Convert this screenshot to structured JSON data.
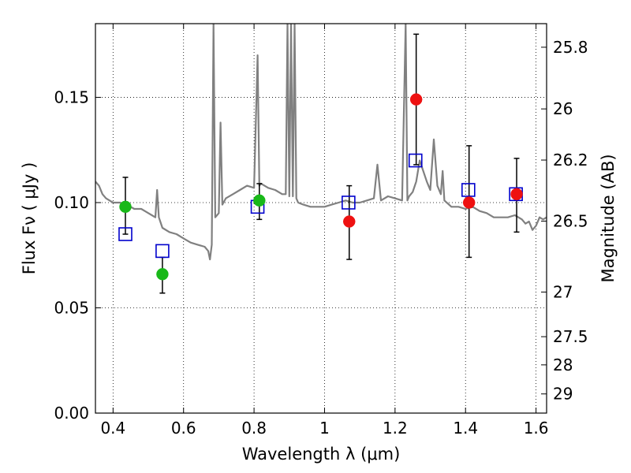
{
  "chart_data": {
    "type": "scatter",
    "title": "",
    "xlabel": "Wavelength  λ (μm)",
    "ylabel": "Flux  Fν  ( μJy )",
    "y2label": "Magnitude (AB)",
    "xlim": [
      0.35,
      1.63
    ],
    "ylim": [
      0.0,
      0.185
    ],
    "grid": true,
    "x_ticks": [
      0.4,
      0.6,
      0.8,
      1.0,
      1.2,
      1.4,
      1.6
    ],
    "x_tick_labels": [
      "0.4",
      "0.6",
      "0.8",
      "1",
      "1.2",
      "1.4",
      "1.6"
    ],
    "y_ticks": [
      0.0,
      0.05,
      0.1,
      0.15
    ],
    "y_tick_labels": [
      "0.00",
      "0.05",
      "0.10",
      "0.15"
    ],
    "y2_ticks": [
      {
        "label": "25.8",
        "flux": 0.1738
      },
      {
        "label": "26",
        "flux": 0.1445
      },
      {
        "label": "26.2",
        "flux": 0.1202
      },
      {
        "label": "26.5",
        "flux": 0.0912
      },
      {
        "label": "27",
        "flux": 0.0575
      },
      {
        "label": "27.5",
        "flux": 0.0363
      },
      {
        "label": "28",
        "flux": 0.0229
      },
      {
        "label": "29",
        "flux": 0.0091
      }
    ],
    "series": [
      {
        "name": "model spectrum",
        "style": "line",
        "color": "#808080",
        "x": [
          0.35,
          0.36,
          0.37,
          0.38,
          0.39,
          0.4,
          0.41,
          0.42,
          0.43,
          0.44,
          0.45,
          0.46,
          0.47,
          0.48,
          0.49,
          0.5,
          0.51,
          0.52,
          0.525,
          0.53,
          0.54,
          0.56,
          0.58,
          0.6,
          0.62,
          0.64,
          0.66,
          0.67,
          0.675,
          0.68,
          0.685,
          0.69,
          0.7,
          0.705,
          0.71,
          0.72,
          0.74,
          0.76,
          0.78,
          0.8,
          0.81,
          0.815,
          0.82,
          0.84,
          0.86,
          0.88,
          0.89,
          0.895,
          0.9,
          0.905,
          0.91,
          0.915,
          0.92,
          0.925,
          0.94,
          0.96,
          0.98,
          1.0,
          1.02,
          1.04,
          1.06,
          1.08,
          1.1,
          1.12,
          1.14,
          1.15,
          1.16,
          1.18,
          1.2,
          1.22,
          1.23,
          1.235,
          1.24,
          1.25,
          1.26,
          1.27,
          1.28,
          1.29,
          1.3,
          1.31,
          1.32,
          1.33,
          1.335,
          1.34,
          1.36,
          1.38,
          1.4,
          1.42,
          1.44,
          1.46,
          1.48,
          1.5,
          1.52,
          1.54,
          1.56,
          1.57,
          1.58,
          1.59,
          1.6,
          1.61,
          1.62,
          1.63
        ],
        "y": [
          0.11,
          0.108,
          0.104,
          0.102,
          0.101,
          0.1,
          0.1,
          0.1,
          0.099,
          0.099,
          0.098,
          0.097,
          0.097,
          0.097,
          0.096,
          0.095,
          0.094,
          0.093,
          0.106,
          0.093,
          0.088,
          0.086,
          0.085,
          0.083,
          0.081,
          0.08,
          0.079,
          0.077,
          0.073,
          0.08,
          0.185,
          0.093,
          0.095,
          0.138,
          0.099,
          0.102,
          0.104,
          0.106,
          0.108,
          0.107,
          0.17,
          0.108,
          0.109,
          0.107,
          0.106,
          0.104,
          0.104,
          0.185,
          0.103,
          0.185,
          0.103,
          0.185,
          0.102,
          0.1,
          0.099,
          0.098,
          0.098,
          0.098,
          0.099,
          0.1,
          0.101,
          0.1,
          0.1,
          0.101,
          0.102,
          0.118,
          0.101,
          0.103,
          0.102,
          0.101,
          0.185,
          0.101,
          0.103,
          0.105,
          0.11,
          0.12,
          0.115,
          0.11,
          0.106,
          0.13,
          0.108,
          0.104,
          0.115,
          0.101,
          0.098,
          0.098,
          0.097,
          0.098,
          0.096,
          0.095,
          0.093,
          0.093,
          0.093,
          0.094,
          0.092,
          0.09,
          0.091,
          0.087,
          0.089,
          0.093,
          0.092,
          0.093
        ]
      },
      {
        "name": "green points",
        "style": "circle",
        "color": "#18b818",
        "x": [
          0.435,
          0.54,
          0.815
        ],
        "y": [
          0.098,
          0.066,
          0.101
        ],
        "err_low": [
          0.085,
          0.057,
          0.092
        ],
        "err_high": [
          0.112,
          0.074,
          0.109
        ]
      },
      {
        "name": "red points",
        "style": "circle",
        "color": "#ee1111",
        "x": [
          1.07,
          1.26,
          1.41,
          1.545
        ],
        "y": [
          0.091,
          0.149,
          0.1,
          0.104
        ],
        "err_low": [
          0.073,
          0.118,
          0.074,
          0.086
        ],
        "err_high": [
          0.108,
          0.18,
          0.127,
          0.121
        ]
      },
      {
        "name": "model photometry",
        "style": "square",
        "color": "#0000cc",
        "x": [
          0.435,
          0.54,
          0.81,
          1.068,
          1.258,
          1.408,
          1.543
        ],
        "y": [
          0.085,
          0.077,
          0.098,
          0.1,
          0.12,
          0.106,
          0.104
        ]
      }
    ]
  }
}
